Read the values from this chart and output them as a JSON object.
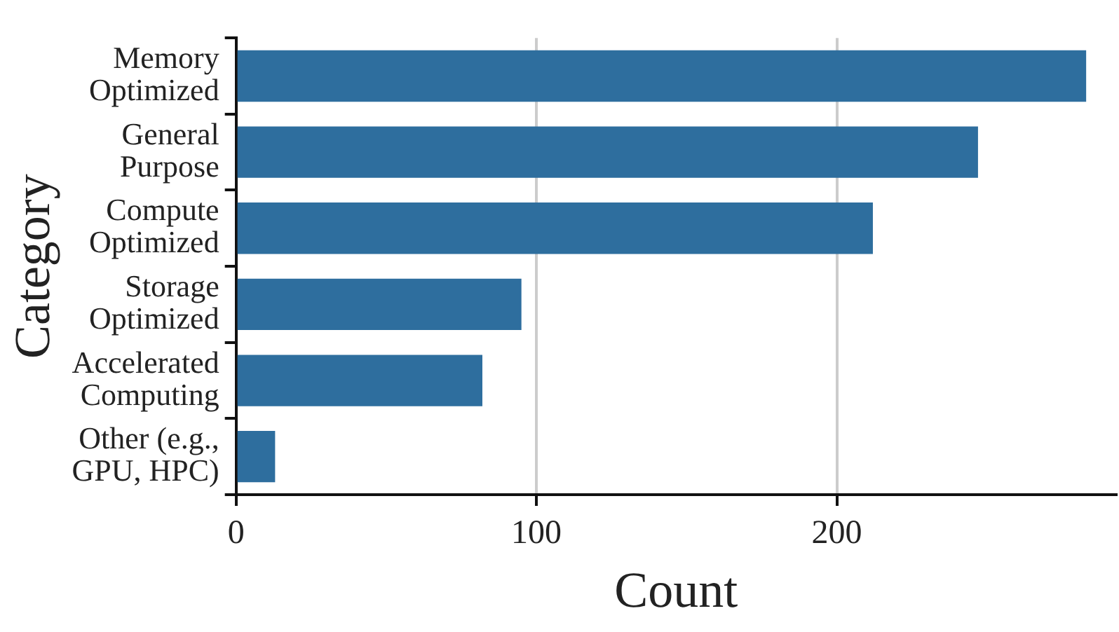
{
  "chart_data": {
    "type": "bar",
    "orientation": "horizontal",
    "xlabel": "Count",
    "ylabel": "Category",
    "categories": [
      "Memory Optimized",
      "General Purpose",
      "Compute Optimized",
      "Storage Optimized",
      "Accelerated Computing",
      "Other (e.g., GPU, HPC)"
    ],
    "values": [
      283,
      247,
      212,
      95,
      82,
      13
    ],
    "color": "#2e6e9e",
    "xlim": [
      0,
      293
    ],
    "xticks": [
      0,
      100,
      200
    ],
    "grid": "x"
  }
}
